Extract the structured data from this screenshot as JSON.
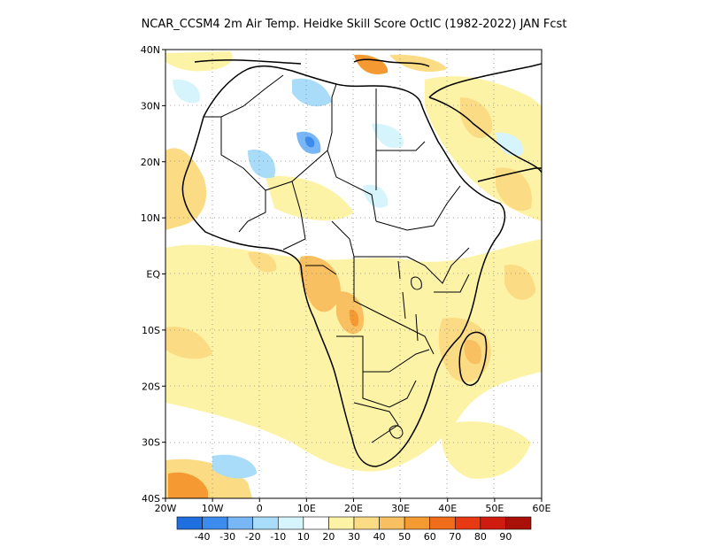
{
  "title": "NCAR_CCSM4  2m Air Temp. Heidke Skill Score OctIC (1982-2022) JAN Fcst",
  "map": {
    "y_ticks": [
      "40N",
      "30N",
      "20N",
      "10N",
      "EQ",
      "10S",
      "20S",
      "30S",
      "40S"
    ],
    "x_ticks": [
      "20W",
      "10W",
      "0",
      "10E",
      "20E",
      "30E",
      "40E",
      "50E",
      "60E"
    ],
    "lon_range": [
      -20,
      60
    ],
    "lat_range": [
      -40,
      40
    ],
    "grid": "dotted",
    "land_outline_color": "#000000"
  },
  "colorbar": {
    "labels": [
      "-40",
      "-30",
      "-20",
      "-10",
      "10",
      "20",
      "30",
      "40",
      "50",
      "60",
      "70",
      "80",
      "90"
    ],
    "colors": [
      "#1f6fe0",
      "#3c8cf0",
      "#78b6f6",
      "#a8dcf8",
      "#d6f4fb",
      "#ffffff",
      "#fdf3a6",
      "#fbdc85",
      "#f8c060",
      "#f59a32",
      "#f06d1a",
      "#e83a12",
      "#d01c10",
      "#a81008"
    ]
  },
  "chart_data": {
    "type": "heatmap",
    "title": "NCAR_CCSM4  2m Air Temp. Heidke Skill Score OctIC (1982-2022) JAN Fcst",
    "x_axis": {
      "ticks": [
        "20W",
        "10W",
        "0",
        "10E",
        "20E",
        "30E",
        "40E",
        "50E",
        "60E"
      ],
      "range": [
        -20,
        60
      ]
    },
    "y_axis": {
      "ticks": [
        "40N",
        "30N",
        "20N",
        "10N",
        "EQ",
        "10S",
        "20S",
        "30S",
        "40S"
      ],
      "range": [
        -40,
        40
      ]
    },
    "color_levels": [
      -40,
      -30,
      -20,
      -10,
      10,
      20,
      30,
      40,
      50,
      60,
      70,
      80,
      90
    ],
    "grid": true
  }
}
